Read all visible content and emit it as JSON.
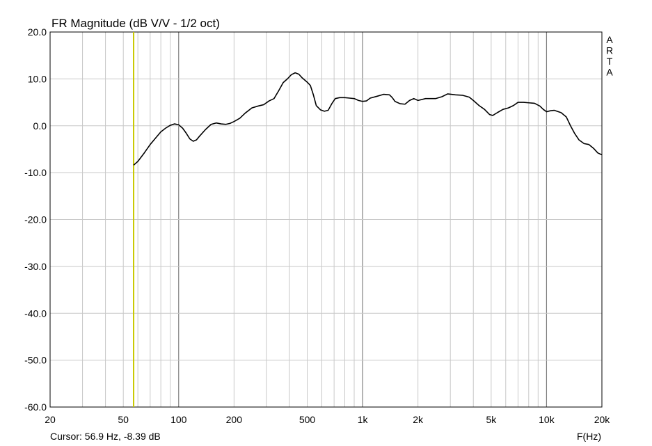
{
  "chart_data": {
    "type": "line",
    "title": "FR Magnitude (dB V/V - 1/2 oct)",
    "xlabel": "F(Hz)",
    "ylabel": "",
    "x_scale": "log",
    "xlim": [
      20,
      20000
    ],
    "ylim": [
      -60,
      20
    ],
    "grid": true,
    "y_ticks": [
      "20.0",
      "10.0",
      "0.0",
      "-10.0",
      "-20.0",
      "-30.0",
      "-40.0",
      "-50.0",
      "-60.0"
    ],
    "x_ticks": [
      {
        "value": 20,
        "label": "20"
      },
      {
        "value": 50,
        "label": "50"
      },
      {
        "value": 100,
        "label": "100"
      },
      {
        "value": 200,
        "label": "200"
      },
      {
        "value": 500,
        "label": "500"
      },
      {
        "value": 1000,
        "label": "1k"
      },
      {
        "value": 2000,
        "label": "2k"
      },
      {
        "value": 5000,
        "label": "5k"
      },
      {
        "value": 10000,
        "label": "10k"
      },
      {
        "value": 20000,
        "label": "20k"
      }
    ],
    "brand": [
      "A",
      "R",
      "T",
      "A"
    ],
    "cursor": {
      "x": 56.9,
      "label": "Cursor: 56.9 Hz, -8.39 dB",
      "color": "#c8c800"
    },
    "series": [
      {
        "color": "#000000",
        "points": [
          [
            56.9,
            -8.4
          ],
          [
            60,
            -7.6
          ],
          [
            65,
            -5.8
          ],
          [
            70,
            -4.0
          ],
          [
            75,
            -2.6
          ],
          [
            80,
            -1.3
          ],
          [
            85,
            -0.5
          ],
          [
            90,
            0.1
          ],
          [
            95,
            0.4
          ],
          [
            100,
            0.2
          ],
          [
            105,
            -0.5
          ],
          [
            110,
            -1.6
          ],
          [
            115,
            -2.8
          ],
          [
            120,
            -3.3
          ],
          [
            125,
            -3.0
          ],
          [
            130,
            -2.2
          ],
          [
            140,
            -0.8
          ],
          [
            150,
            0.3
          ],
          [
            160,
            0.6
          ],
          [
            170,
            0.4
          ],
          [
            180,
            0.3
          ],
          [
            190,
            0.5
          ],
          [
            200,
            0.9
          ],
          [
            215,
            1.6
          ],
          [
            230,
            2.7
          ],
          [
            250,
            3.8
          ],
          [
            270,
            4.2
          ],
          [
            290,
            4.5
          ],
          [
            310,
            5.3
          ],
          [
            330,
            5.8
          ],
          [
            350,
            7.5
          ],
          [
            370,
            9.2
          ],
          [
            390,
            10.0
          ],
          [
            410,
            10.9
          ],
          [
            430,
            11.3
          ],
          [
            450,
            11.0
          ],
          [
            470,
            10.2
          ],
          [
            500,
            9.3
          ],
          [
            520,
            8.6
          ],
          [
            540,
            6.6
          ],
          [
            560,
            4.3
          ],
          [
            590,
            3.4
          ],
          [
            620,
            3.1
          ],
          [
            650,
            3.3
          ],
          [
            680,
            4.7
          ],
          [
            710,
            5.8
          ],
          [
            750,
            6.0
          ],
          [
            800,
            6.0
          ],
          [
            850,
            5.9
          ],
          [
            900,
            5.8
          ],
          [
            950,
            5.4
          ],
          [
            1000,
            5.2
          ],
          [
            1050,
            5.3
          ],
          [
            1100,
            5.9
          ],
          [
            1200,
            6.3
          ],
          [
            1300,
            6.7
          ],
          [
            1400,
            6.6
          ],
          [
            1450,
            6.0
          ],
          [
            1500,
            5.2
          ],
          [
            1600,
            4.7
          ],
          [
            1700,
            4.6
          ],
          [
            1800,
            5.4
          ],
          [
            1900,
            5.8
          ],
          [
            2000,
            5.4
          ],
          [
            2200,
            5.8
          ],
          [
            2500,
            5.8
          ],
          [
            2700,
            6.2
          ],
          [
            2900,
            6.8
          ],
          [
            3200,
            6.6
          ],
          [
            3500,
            6.5
          ],
          [
            3800,
            6.1
          ],
          [
            4000,
            5.4
          ],
          [
            4300,
            4.3
          ],
          [
            4600,
            3.5
          ],
          [
            4900,
            2.4
          ],
          [
            5100,
            2.2
          ],
          [
            5400,
            2.8
          ],
          [
            5800,
            3.5
          ],
          [
            6200,
            3.8
          ],
          [
            6600,
            4.3
          ],
          [
            7000,
            5.0
          ],
          [
            7500,
            5.0
          ],
          [
            8000,
            4.9
          ],
          [
            8600,
            4.8
          ],
          [
            9200,
            4.2
          ],
          [
            9600,
            3.5
          ],
          [
            10000,
            3.0
          ],
          [
            10500,
            3.2
          ],
          [
            11000,
            3.3
          ],
          [
            12000,
            2.8
          ],
          [
            12800,
            1.9
          ],
          [
            13500,
            0.0
          ],
          [
            14200,
            -1.6
          ],
          [
            15000,
            -3.0
          ],
          [
            16000,
            -3.8
          ],
          [
            17000,
            -4.0
          ],
          [
            18000,
            -4.8
          ],
          [
            19000,
            -5.8
          ],
          [
            20000,
            -6.2
          ]
        ]
      }
    ]
  }
}
